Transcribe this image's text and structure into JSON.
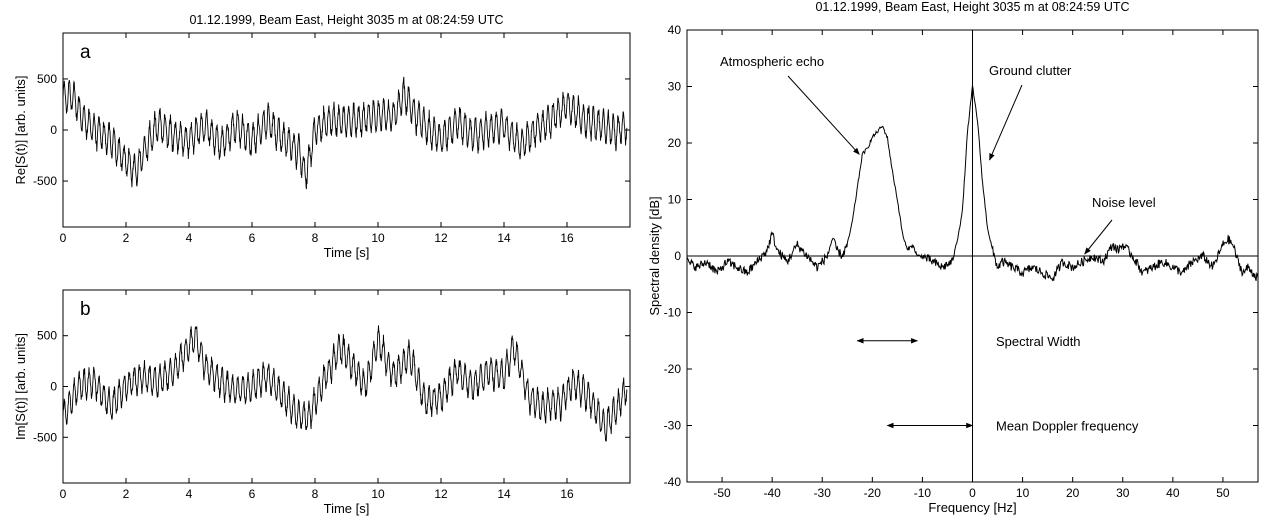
{
  "chart_data": [
    {
      "type": "line",
      "panel_label": "a",
      "title": "01.12.1999, Beam East, Height 3035 m at 08:24:59 UTC",
      "xlabel": "Time [s]",
      "ylabel": "Re[S(t)] [arb. units]",
      "xlim": [
        0,
        18
      ],
      "ylim": [
        -950,
        950
      ],
      "xticks": [
        0,
        2,
        4,
        6,
        8,
        10,
        12,
        14,
        16
      ],
      "yticks": [
        -500,
        0,
        500
      ],
      "series": [
        {
          "x": [
            0,
            0.3,
            0.6,
            1.0,
            1.5,
            2.0,
            2.3,
            2.6,
            3.0,
            3.5,
            4.0,
            4.5,
            5.0,
            5.5,
            6.0,
            6.5,
            7.0,
            7.5,
            7.7,
            8.0,
            8.5,
            9.0,
            9.5,
            10.0,
            10.5,
            10.8,
            11.2,
            11.6,
            12.0,
            12.5,
            13.0,
            13.5,
            14.0,
            14.5,
            15.0,
            15.5,
            16.0,
            16.5,
            17.0,
            17.5,
            17.9
          ],
          "y": [
            300,
            350,
            120,
            0,
            -100,
            -300,
            -400,
            -200,
            50,
            -50,
            -100,
            50,
            -150,
            50,
            -100,
            100,
            -100,
            -200,
            -450,
            0,
            100,
            80,
            100,
            150,
            120,
            350,
            150,
            0,
            -100,
            80,
            -50,
            0,
            50,
            -150,
            0,
            100,
            250,
            100,
            50,
            -20,
            50
          ],
          "oscillation_amplitude": 180
        }
      ]
    },
    {
      "type": "line",
      "panel_label": "b",
      "xlabel": "Time [s]",
      "ylabel": "Im[S(t)] [arb. units]",
      "xlim": [
        0,
        18
      ],
      "ylim": [
        -950,
        950
      ],
      "xticks": [
        0,
        2,
        4,
        6,
        8,
        10,
        12,
        14,
        16
      ],
      "yticks": [
        -500,
        0,
        500
      ],
      "series": [
        {
          "x": [
            0,
            0.5,
            1.0,
            1.5,
            2.0,
            2.5,
            3.0,
            3.5,
            4.0,
            4.2,
            4.5,
            5.0,
            5.5,
            6.0,
            6.5,
            7.0,
            7.5,
            7.8,
            8.2,
            8.8,
            9.2,
            9.6,
            10.0,
            10.5,
            11.0,
            11.5,
            12.0,
            12.5,
            13.0,
            13.5,
            14.0,
            14.3,
            14.8,
            15.2,
            15.8,
            16.2,
            16.7,
            17.2,
            17.6,
            17.9
          ],
          "y": [
            -300,
            0,
            50,
            -200,
            0,
            100,
            50,
            150,
            400,
            500,
            200,
            50,
            -50,
            0,
            100,
            -100,
            -300,
            -300,
            0,
            400,
            200,
            0,
            450,
            100,
            300,
            -150,
            -100,
            150,
            0,
            150,
            100,
            400,
            -100,
            -200,
            -150,
            50,
            -100,
            -400,
            -200,
            0
          ],
          "oscillation_amplitude": 170
        }
      ]
    },
    {
      "type": "line",
      "title": "01.12.1999, Beam East, Height 3035 m at 08:24:59 UTC",
      "xlabel": "Frequency [Hz]",
      "ylabel": "Spectral density [dB]",
      "xlim": [
        -57,
        57
      ],
      "ylim": [
        -40,
        40
      ],
      "xticks": [
        -50,
        -40,
        -30,
        -20,
        -10,
        0,
        10,
        20,
        30,
        40,
        50
      ],
      "yticks": [
        -40,
        -30,
        -20,
        -10,
        0,
        10,
        20,
        30,
        40
      ],
      "series": [
        {
          "x": [
            -57,
            -55,
            -53,
            -51,
            -49,
            -47,
            -45,
            -43,
            -41,
            -40,
            -39,
            -37,
            -35,
            -33,
            -31,
            -29,
            -28,
            -27,
            -26,
            -25,
            -24,
            -23,
            -22,
            -21,
            -20,
            -19,
            -18,
            -17,
            -16,
            -15,
            -14,
            -13,
            -12,
            -11,
            -10,
            -8,
            -6,
            -4,
            -3,
            -2,
            -1,
            0,
            1,
            2,
            3,
            4,
            5,
            6,
            8,
            10,
            12,
            14,
            16,
            18,
            20,
            22,
            24,
            26,
            28,
            29,
            30,
            32,
            34,
            36,
            38,
            40,
            42,
            44,
            46,
            48,
            50,
            51,
            52,
            53,
            54,
            55,
            57
          ],
          "y": [
            -1,
            -2,
            -1,
            -3,
            -1,
            -2,
            -3,
            -1,
            1,
            4,
            1,
            -1,
            2,
            0,
            -2,
            0,
            3,
            1,
            0,
            2,
            6,
            12,
            18,
            19,
            21,
            22,
            23,
            21,
            15,
            10,
            4,
            1,
            2,
            0,
            0,
            -1,
            -2,
            -1,
            3,
            8,
            22,
            30,
            24,
            13,
            5,
            1,
            -2,
            -1,
            -2,
            -3,
            -2,
            -3,
            -4,
            -1,
            -2,
            -1,
            0,
            -1,
            2,
            1,
            2,
            0,
            -3,
            -2,
            -1,
            -2,
            -3,
            -1,
            0,
            -2,
            2,
            3,
            2,
            -1,
            -3,
            -2,
            -4
          ]
        }
      ],
      "reference_lines": {
        "horizontal_y": 0,
        "vertical_x": 0
      },
      "annotations": [
        {
          "text": "Atmospheric echo",
          "target": [
            -23,
            18
          ]
        },
        {
          "text": "Ground clutter",
          "target": [
            3,
            17
          ]
        },
        {
          "text": "Noise level",
          "target": [
            22,
            0
          ]
        },
        {
          "text": "Spectral Width",
          "arrow_from": -23,
          "arrow_to": -11,
          "arrow_y": -15
        },
        {
          "text": "Mean Doppler frequency",
          "arrow_from": -17,
          "arrow_to": 0,
          "arrow_y": -30
        }
      ]
    }
  ]
}
